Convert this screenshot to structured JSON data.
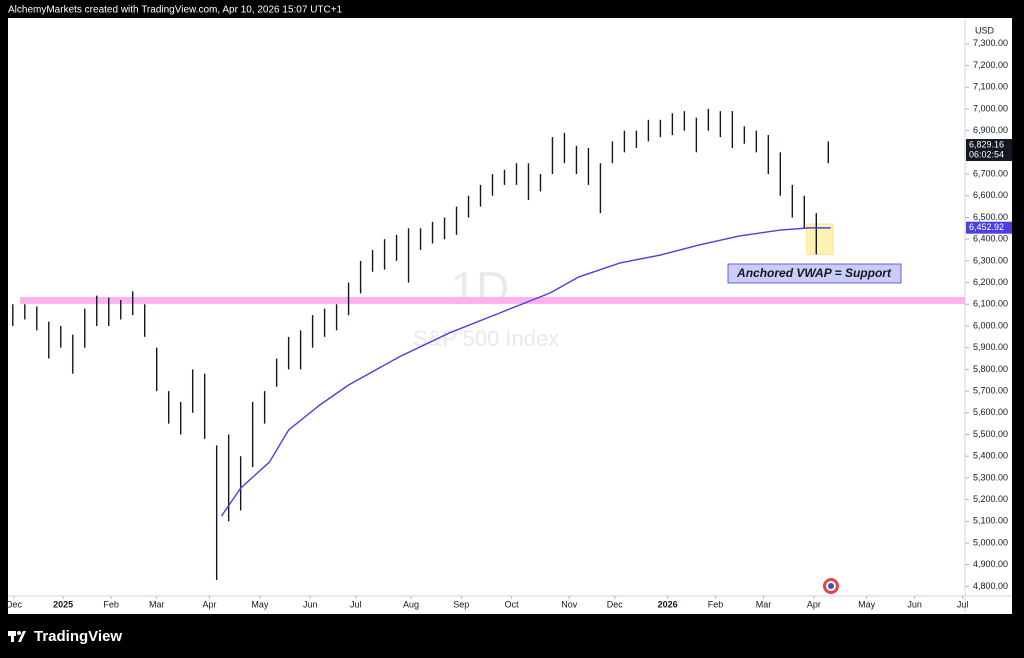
{
  "header": "AlchemyMarkets created with TradingView.com, Apr 10, 2026 15:07 UTC+1",
  "footer": "TradingView",
  "chart_data": {
    "type": "range-bar",
    "currency": "USD",
    "interval": "1D",
    "annotation": "Anchored VWAP = Support",
    "countdown": "06:02:54",
    "last_price": {
      "value": 6829.16,
      "label": "6,829.16"
    },
    "vwap_price": {
      "value": 6452.92,
      "label": "6,452.92"
    },
    "support_band": {
      "value": 6120,
      "color": "#ffb3ee"
    },
    "highlight": {
      "x": [
        333,
        344
      ],
      "y": [
        6330,
        6470
      ],
      "color": "#fff3b0"
    },
    "xlim": [
      0,
      399
    ],
    "ylim": [
      4756,
      7419
    ],
    "xticks": [
      {
        "value": 2.5,
        "label": "Dec"
      },
      {
        "value": 23,
        "label": "2025"
      },
      {
        "value": 43,
        "label": "Feb"
      },
      {
        "value": 62,
        "label": "Mar"
      },
      {
        "value": 84,
        "label": "Apr"
      },
      {
        "value": 105,
        "label": "May"
      },
      {
        "value": 126,
        "label": "Jun"
      },
      {
        "value": 145,
        "label": "Jul"
      },
      {
        "value": 168,
        "label": "Aug"
      },
      {
        "value": 189,
        "label": "Sep"
      },
      {
        "value": 210,
        "label": "Oct"
      },
      {
        "value": 234,
        "label": "Nov"
      },
      {
        "value": 253,
        "label": "Dec"
      },
      {
        "value": 275,
        "label": "2026"
      },
      {
        "value": 295,
        "label": "Feb"
      },
      {
        "value": 315,
        "label": "Mar"
      },
      {
        "value": 336,
        "label": "Apr"
      },
      {
        "value": 358,
        "label": "May"
      },
      {
        "value": 378,
        "label": "Jun"
      },
      {
        "value": 398,
        "label": "Jul"
      }
    ],
    "yticks": [
      {
        "value": 4800,
        "label": "4,800.00"
      },
      {
        "value": 4900,
        "label": "4,900.00"
      },
      {
        "value": 5000,
        "label": "5,000.00"
      },
      {
        "value": 5100,
        "label": "5,100.00"
      },
      {
        "value": 5200,
        "label": "5,200.00"
      },
      {
        "value": 5300,
        "label": "5,300.00"
      },
      {
        "value": 5400,
        "label": "5,400.00"
      },
      {
        "value": 5500,
        "label": "5,500.00"
      },
      {
        "value": 5600,
        "label": "5,600.00"
      },
      {
        "value": 5700,
        "label": "5,700.00"
      },
      {
        "value": 5800,
        "label": "5,800.00"
      },
      {
        "value": 5900,
        "label": "5,900.00"
      },
      {
        "value": 6000,
        "label": "6,000.00"
      },
      {
        "value": 6100,
        "label": "6,100.00"
      },
      {
        "value": 6200,
        "label": "6,200.00"
      },
      {
        "value": 6300,
        "label": "6,300.00"
      },
      {
        "value": 6400,
        "label": "6,400.00"
      },
      {
        "value": 6500,
        "label": "6,500.00"
      },
      {
        "value": 6600,
        "label": "6,600.00"
      },
      {
        "value": 6700,
        "label": "6,700.00"
      },
      {
        "value": 6800,
        "label": "6,800.00"
      },
      {
        "value": 6900,
        "label": "6,900.00"
      },
      {
        "value": 7000,
        "label": "7,000.00"
      },
      {
        "value": 7100,
        "label": "7,100.00"
      },
      {
        "value": 7200,
        "label": "7,200.00"
      },
      {
        "value": 7300,
        "label": "7,300.00"
      }
    ],
    "series": [
      {
        "name": "S&P 500 Index",
        "color": "#131722",
        "x": [
          2,
          7,
          12,
          17,
          22,
          27,
          32,
          37,
          42,
          47,
          52,
          57,
          62,
          67,
          72,
          77,
          82,
          87,
          92,
          97,
          102,
          107,
          112,
          117,
          122,
          127,
          132,
          137,
          142,
          147,
          152,
          157,
          162,
          167,
          172,
          177,
          182,
          187,
          192,
          197,
          202,
          207,
          212,
          217,
          222,
          227,
          232,
          237,
          242,
          247,
          252,
          257,
          262,
          267,
          272,
          277,
          282,
          287,
          292,
          297,
          302,
          307,
          312,
          317,
          322,
          327,
          332,
          337,
          342
        ],
        "high": [
          6100,
          6100,
          6090,
          6020,
          6000,
          5960,
          6080,
          6140,
          6130,
          6120,
          6160,
          6100,
          5900,
          5700,
          5650,
          5800,
          5780,
          5450,
          5500,
          5400,
          5650,
          5700,
          5850,
          5950,
          5980,
          6050,
          6080,
          6100,
          6200,
          6300,
          6350,
          6400,
          6420,
          6450,
          6450,
          6480,
          6500,
          6550,
          6600,
          6650,
          6700,
          6720,
          6750,
          6750,
          6700,
          6870,
          6890,
          6830,
          6820,
          6750,
          6850,
          6900,
          6900,
          6950,
          6950,
          6980,
          6990,
          6960,
          7000,
          6990,
          6990,
          6920,
          6900,
          6880,
          6800,
          6650,
          6600,
          6520,
          6850
        ],
        "low": [
          6000,
          6030,
          5980,
          5850,
          5900,
          5780,
          5900,
          6000,
          6000,
          6030,
          6050,
          5950,
          5700,
          5550,
          5500,
          5600,
          5480,
          4830,
          5100,
          5150,
          5350,
          5550,
          5720,
          5800,
          5800,
          5900,
          5950,
          5980,
          6050,
          6150,
          6250,
          6260,
          6300,
          6200,
          6350,
          6380,
          6400,
          6420,
          6500,
          6550,
          6600,
          6650,
          6650,
          6580,
          6620,
          6700,
          6750,
          6700,
          6650,
          6520,
          6750,
          6800,
          6820,
          6850,
          6870,
          6880,
          6900,
          6800,
          6900,
          6870,
          6820,
          6840,
          6800,
          6700,
          6600,
          6500,
          6450,
          6330,
          6750
        ]
      },
      {
        "color": "#4b3fe0",
        "axis_kind": "vwap",
        "x": [
          89,
          97,
          109,
          117,
          130,
          142,
          163,
          184,
          205,
          226,
          238,
          255,
          272,
          288,
          305,
          322,
          334,
          343
        ],
        "values": [
          5124,
          5253,
          5373,
          5521,
          5636,
          5728,
          5857,
          5968,
          6060,
          6152,
          6226,
          6290,
          6327,
          6373,
          6415,
          6442,
          6452,
          6452
        ]
      }
    ]
  }
}
